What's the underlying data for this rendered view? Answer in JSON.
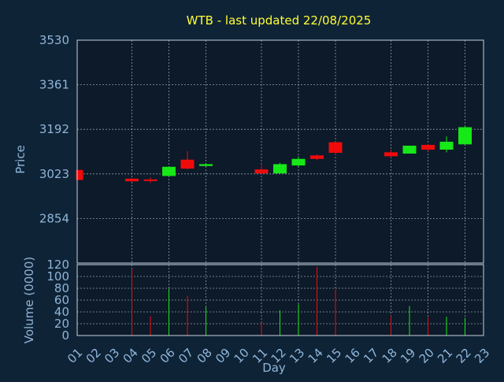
{
  "title": "WTB - last updated 22/08/2025",
  "colors": {
    "background": "#0f2337",
    "plot_background": "#0c1a2a",
    "title": "#ffff33",
    "axis_text": "#8fb6d8",
    "grid": "#c8d2dc",
    "frame": "#c8d2dc",
    "up": "#17e817",
    "down": "#f00b0b"
  },
  "chart_data": [
    {
      "type": "candlestick",
      "panel": "price",
      "ylabel": "Price",
      "ylim": [
        2685,
        3530
      ],
      "yticks": [
        2854,
        3023,
        3192,
        3361,
        3530
      ],
      "candles": [
        {
          "day": "01",
          "open": 3038,
          "high": 3038,
          "low": 3000,
          "close": 3000
        },
        {
          "day": "04",
          "open": 3005,
          "high": 3007,
          "low": 2993,
          "close": 2995
        },
        {
          "day": "05",
          "open": 3002,
          "high": 3010,
          "low": 2988,
          "close": 3000
        },
        {
          "day": "06",
          "open": 3015,
          "high": 3050,
          "low": 3015,
          "close": 3050
        },
        {
          "day": "07",
          "open": 3077,
          "high": 3110,
          "low": 3040,
          "close": 3043
        },
        {
          "day": "08",
          "open": 3053,
          "high": 3063,
          "low": 3050,
          "close": 3060
        },
        {
          "day": "11",
          "open": 3040,
          "high": 3055,
          "low": 3020,
          "close": 3025
        },
        {
          "day": "12",
          "open": 3025,
          "high": 3065,
          "low": 3025,
          "close": 3060
        },
        {
          "day": "13",
          "open": 3055,
          "high": 3090,
          "low": 3050,
          "close": 3080
        },
        {
          "day": "14",
          "open": 3093,
          "high": 3097,
          "low": 3075,
          "close": 3080
        },
        {
          "day": "15",
          "open": 3143,
          "high": 3145,
          "low": 3095,
          "close": 3103
        },
        {
          "day": "18",
          "open": 3105,
          "high": 3115,
          "low": 3085,
          "close": 3090
        },
        {
          "day": "19",
          "open": 3100,
          "high": 3130,
          "low": 3100,
          "close": 3130
        },
        {
          "day": "20",
          "open": 3133,
          "high": 3135,
          "low": 3110,
          "close": 3115
        },
        {
          "day": "21",
          "open": 3115,
          "high": 3165,
          "low": 3105,
          "close": 3145
        },
        {
          "day": "22",
          "open": 3135,
          "high": 3205,
          "low": 3135,
          "close": 3200
        }
      ]
    },
    {
      "type": "bar",
      "panel": "volume",
      "ylabel": "Volume (0000)",
      "xlabel": "Day",
      "ylim": [
        0,
        120
      ],
      "yticks": [
        0,
        20,
        40,
        60,
        80,
        100,
        120
      ],
      "bars": [
        {
          "day": "04",
          "value": 113,
          "direction": "down"
        },
        {
          "day": "05",
          "value": 33,
          "direction": "down"
        },
        {
          "day": "06",
          "value": 79,
          "direction": "up"
        },
        {
          "day": "07",
          "value": 67,
          "direction": "down"
        },
        {
          "day": "08",
          "value": 48,
          "direction": "up"
        },
        {
          "day": "11",
          "value": 22,
          "direction": "down"
        },
        {
          "day": "12",
          "value": 43,
          "direction": "up"
        },
        {
          "day": "13",
          "value": 53,
          "direction": "up"
        },
        {
          "day": "14",
          "value": 116,
          "direction": "down"
        },
        {
          "day": "15",
          "value": 78,
          "direction": "down"
        },
        {
          "day": "18",
          "value": 34,
          "direction": "down"
        },
        {
          "day": "19",
          "value": 50,
          "direction": "up"
        },
        {
          "day": "20",
          "value": 31,
          "direction": "down"
        },
        {
          "day": "21",
          "value": 32,
          "direction": "up"
        },
        {
          "day": "22",
          "value": 30,
          "direction": "up"
        }
      ]
    }
  ],
  "x_axis": {
    "days": [
      "01",
      "02",
      "03",
      "04",
      "05",
      "06",
      "07",
      "08",
      "09",
      "10",
      "11",
      "12",
      "13",
      "14",
      "15",
      "16",
      "17",
      "18",
      "19",
      "20",
      "21",
      "22",
      "23"
    ],
    "gridlines_at": [
      "04",
      "06",
      "08",
      "11",
      "13",
      "15",
      "18",
      "20",
      "22"
    ]
  }
}
